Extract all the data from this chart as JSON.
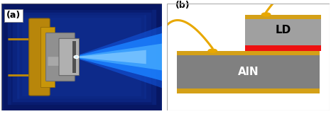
{
  "fig_width": 4.66,
  "fig_height": 1.61,
  "dpi": 100,
  "panel_a_label": "(a)",
  "panel_b_label": "(b)",
  "ld_label": "LD",
  "ain_label": "AlN",
  "bg_color": "#ffffff",
  "border_color": "#aaaaaa",
  "photo_bg": "#0d2680",
  "photo_bg2": "#0a1a6a",
  "ain_color": "#808080",
  "ain_border_color": "#d4a017",
  "ld_color": "#a0a0a0",
  "red_layer_color": "#ee1111",
  "wire_color": "#e8a800",
  "bond_pad_color": "#e8a800",
  "brass_color": "#b8860b",
  "brass_dark": "#8b6508",
  "metal_color": "#909090",
  "metal_dark": "#707070",
  "metal_light": "#c0c0c0",
  "label_fontsize": 9,
  "ld_label_fontsize": 11,
  "ain_label_fontsize": 11
}
